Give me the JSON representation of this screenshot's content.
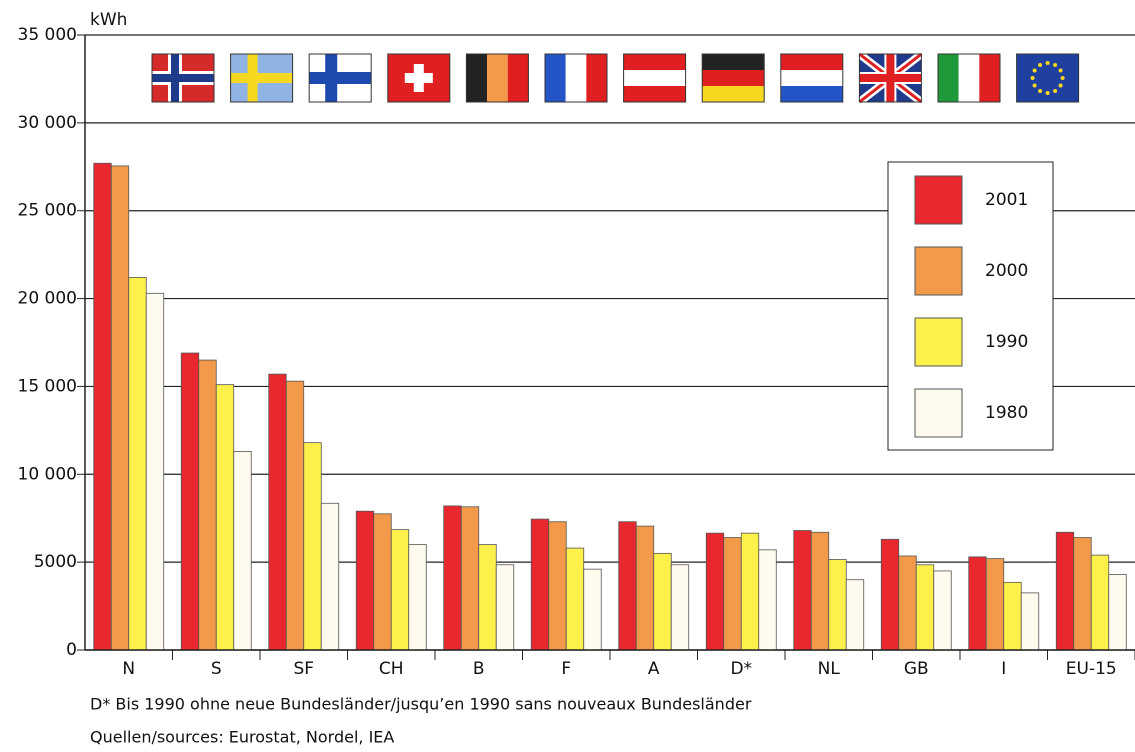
{
  "chart_data": {
    "type": "bar",
    "y_unit": "kWh",
    "categories": [
      "N",
      "S",
      "SF",
      "CH",
      "B",
      "F",
      "A",
      "D*",
      "NL",
      "GB",
      "I",
      "EU-15"
    ],
    "series": [
      {
        "name": "2001",
        "color": "#e8282e",
        "values": [
          27700,
          16900,
          15700,
          7900,
          8200,
          7450,
          7300,
          6650,
          6800,
          6300,
          5300,
          6700
        ]
      },
      {
        "name": "2000",
        "color": "#f39a4a",
        "values": [
          27550,
          16500,
          15300,
          7750,
          8150,
          7300,
          7050,
          6400,
          6700,
          5350,
          5200,
          6400
        ]
      },
      {
        "name": "1990",
        "color": "#fdf04a",
        "values": [
          21200,
          15100,
          11800,
          6850,
          6000,
          5800,
          5500,
          6650,
          5150,
          4850,
          3850,
          5400
        ]
      },
      {
        "name": "1980",
        "color": "#fffaee",
        "values": [
          20300,
          11300,
          8350,
          6000,
          4850,
          4600,
          4850,
          5700,
          4000,
          4500,
          3250,
          4300
        ]
      }
    ],
    "ylim": [
      0,
      35000
    ],
    "yticks": [
      0,
      5000,
      {
        "value": 10000,
        "label": "10 000"
      },
      {
        "value": 15000,
        "label": "15 000"
      },
      {
        "value": 20000,
        "label": "20 000"
      },
      {
        "value": 25000,
        "label": "25 000"
      },
      {
        "value": 30000,
        "label": "30 000"
      },
      {
        "value": 35000,
        "label": "35 000"
      }
    ],
    "grid": true,
    "legend": "upper right",
    "footnotes": [
      "D*  Bis 1990 ohne neue Bundesländer/jusqu’en 1990 sans nouveaux Bundesländer",
      "Quellen/sources: Eurostat, Nordel, IEA"
    ]
  }
}
